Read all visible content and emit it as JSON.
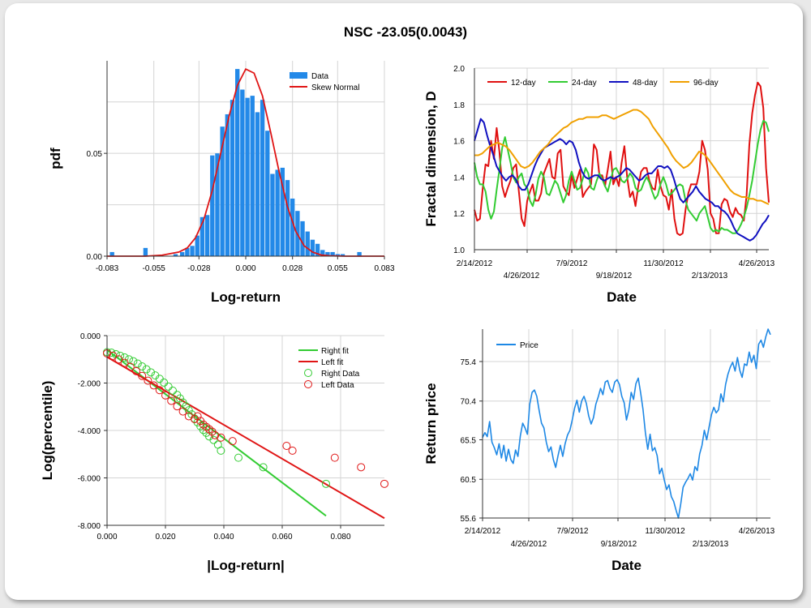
{
  "title": "NSC -23.05(0.0043)",
  "chart_data": [
    {
      "type": "bar",
      "id": "histogram",
      "xlabel": "Log-return",
      "ylabel": "pdf",
      "xlim": [
        -0.083,
        0.083
      ],
      "ylim": [
        0,
        0.095
      ],
      "x_ticks": [
        "-0.083",
        "-0.055",
        "-0.028",
        "0.000",
        "0.028",
        "0.055",
        "0.083"
      ],
      "y_ticks": [
        "0.00",
        "0.05"
      ],
      "legend": [
        "Data",
        "Skew Normal"
      ],
      "bar_width": 0.0026,
      "bars": {
        "x": [
          -0.08,
          -0.06,
          -0.042,
          -0.038,
          -0.035,
          -0.032,
          -0.029,
          -0.026,
          -0.023,
          -0.02,
          -0.017,
          -0.014,
          -0.011,
          -0.008,
          -0.005,
          -0.002,
          0.001,
          0.004,
          0.007,
          0.01,
          0.013,
          0.016,
          0.019,
          0.022,
          0.025,
          0.028,
          0.031,
          0.034,
          0.037,
          0.04,
          0.043,
          0.046,
          0.049,
          0.052,
          0.055,
          0.058,
          0.068
        ],
        "values": [
          0.002,
          0.004,
          0.001,
          0.002,
          0.004,
          0.005,
          0.01,
          0.019,
          0.02,
          0.049,
          0.05,
          0.063,
          0.069,
          0.076,
          0.091,
          0.081,
          0.077,
          0.078,
          0.07,
          0.076,
          0.061,
          0.04,
          0.042,
          0.043,
          0.037,
          0.028,
          0.022,
          0.017,
          0.012,
          0.008,
          0.006,
          0.003,
          0.002,
          0.002,
          0.001,
          0.001,
          0.002
        ]
      },
      "fit": {
        "x": [
          -0.083,
          -0.06,
          -0.05,
          -0.04,
          -0.035,
          -0.03,
          -0.025,
          -0.02,
          -0.015,
          -0.01,
          -0.005,
          0.0,
          0.005,
          0.01,
          0.015,
          0.02,
          0.025,
          0.03,
          0.035,
          0.04,
          0.045,
          0.05,
          0.06,
          0.083
        ],
        "y": [
          0.0,
          0.0,
          0.0005,
          0.002,
          0.004,
          0.009,
          0.018,
          0.032,
          0.05,
          0.068,
          0.083,
          0.091,
          0.089,
          0.078,
          0.06,
          0.041,
          0.024,
          0.012,
          0.005,
          0.002,
          0.0006,
          0.0002,
          0.0,
          0.0
        ]
      }
    },
    {
      "type": "line",
      "id": "fractal",
      "xlabel": "Date",
      "ylabel": "Fractal dimension, D",
      "xlim": [
        0,
        1
      ],
      "ylim": [
        1.0,
        2.0
      ],
      "y_ticks": [
        "1.0",
        "1.2",
        "1.4",
        "1.6",
        "1.8",
        "2.0"
      ],
      "x_ticks_top": [
        "2/14/2012",
        "7/9/2012",
        "11/30/2012",
        "4/26/2013"
      ],
      "x_ticks_bottom": [
        "4/26/2012",
        "9/18/2012",
        "2/13/2013"
      ],
      "series": [
        {
          "name": "12-day",
          "color": "#e01010",
          "values": [
            1.22,
            1.16,
            1.17,
            1.34,
            1.47,
            1.46,
            1.6,
            1.5,
            1.67,
            1.54,
            1.35,
            1.29,
            1.34,
            1.38,
            1.45,
            1.47,
            1.32,
            1.17,
            1.13,
            1.27,
            1.32,
            1.36,
            1.27,
            1.27,
            1.31,
            1.42,
            1.46,
            1.5,
            1.4,
            1.39,
            1.53,
            1.55,
            1.35,
            1.32,
            1.3,
            1.41,
            1.34,
            1.39,
            1.44,
            1.29,
            1.32,
            1.34,
            1.36,
            1.58,
            1.55,
            1.41,
            1.41,
            1.35,
            1.44,
            1.54,
            1.36,
            1.4,
            1.35,
            1.48,
            1.57,
            1.4,
            1.29,
            1.32,
            1.24,
            1.35,
            1.43,
            1.45,
            1.45,
            1.38,
            1.34,
            1.33,
            1.44,
            1.35,
            1.3,
            1.29,
            1.22,
            1.33,
            1.17,
            1.09,
            1.08,
            1.09,
            1.22,
            1.31,
            1.36,
            1.36,
            1.36,
            1.43,
            1.6,
            1.55,
            1.44,
            1.2,
            1.17,
            1.09,
            1.09,
            1.25,
            1.28,
            1.27,
            1.21,
            1.18,
            1.23,
            1.2,
            1.19,
            1.16,
            1.3,
            1.58,
            1.75,
            1.85,
            1.92,
            1.9,
            1.78,
            1.45,
            1.26
          ]
        },
        {
          "name": "24-day",
          "color": "#33cc33",
          "values": [
            1.48,
            1.4,
            1.36,
            1.36,
            1.32,
            1.22,
            1.17,
            1.21,
            1.33,
            1.44,
            1.56,
            1.62,
            1.55,
            1.48,
            1.4,
            1.37,
            1.4,
            1.42,
            1.36,
            1.34,
            1.27,
            1.24,
            1.3,
            1.39,
            1.43,
            1.4,
            1.31,
            1.3,
            1.34,
            1.38,
            1.36,
            1.31,
            1.26,
            1.3,
            1.38,
            1.43,
            1.38,
            1.33,
            1.34,
            1.39,
            1.45,
            1.42,
            1.34,
            1.33,
            1.38,
            1.42,
            1.39,
            1.35,
            1.32,
            1.38,
            1.44,
            1.45,
            1.42,
            1.38,
            1.37,
            1.39,
            1.42,
            1.4,
            1.34,
            1.32,
            1.33,
            1.37,
            1.4,
            1.37,
            1.32,
            1.28,
            1.3,
            1.36,
            1.4,
            1.36,
            1.3,
            1.31,
            1.33,
            1.35,
            1.36,
            1.35,
            1.27,
            1.22,
            1.2,
            1.18,
            1.16,
            1.2,
            1.22,
            1.24,
            1.18,
            1.12,
            1.1,
            1.11,
            1.1,
            1.12,
            1.11,
            1.11,
            1.1,
            1.09,
            1.09,
            1.11,
            1.14,
            1.18,
            1.23,
            1.3,
            1.38,
            1.48,
            1.58,
            1.66,
            1.71,
            1.7,
            1.65
          ]
        },
        {
          "name": "48-day",
          "color": "#1010c0",
          "values": [
            1.6,
            1.66,
            1.72,
            1.7,
            1.63,
            1.57,
            1.52,
            1.46,
            1.43,
            1.4,
            1.38,
            1.4,
            1.41,
            1.39,
            1.35,
            1.33,
            1.33,
            1.36,
            1.41,
            1.46,
            1.5,
            1.53,
            1.56,
            1.57,
            1.58,
            1.59,
            1.6,
            1.61,
            1.6,
            1.58,
            1.6,
            1.59,
            1.55,
            1.48,
            1.43,
            1.4,
            1.39,
            1.4,
            1.41,
            1.41,
            1.39,
            1.38,
            1.39,
            1.4,
            1.39,
            1.4,
            1.41,
            1.43,
            1.45,
            1.44,
            1.42,
            1.4,
            1.38,
            1.39,
            1.41,
            1.42,
            1.42,
            1.44,
            1.46,
            1.46,
            1.45,
            1.46,
            1.44,
            1.39,
            1.33,
            1.28,
            1.26,
            1.28,
            1.3,
            1.32,
            1.35,
            1.32,
            1.3,
            1.28,
            1.27,
            1.26,
            1.24,
            1.24,
            1.22,
            1.21,
            1.19,
            1.16,
            1.12,
            1.09,
            1.08,
            1.07,
            1.06,
            1.05,
            1.06,
            1.08,
            1.11,
            1.14,
            1.16,
            1.19
          ]
        },
        {
          "name": "96-day",
          "color": "#f0a000",
          "values": [
            1.52,
            1.52,
            1.53,
            1.55,
            1.57,
            1.58,
            1.59,
            1.58,
            1.57,
            1.55,
            1.52,
            1.49,
            1.46,
            1.45,
            1.46,
            1.48,
            1.51,
            1.54,
            1.56,
            1.58,
            1.61,
            1.63,
            1.65,
            1.67,
            1.68,
            1.7,
            1.71,
            1.72,
            1.72,
            1.73,
            1.73,
            1.73,
            1.73,
            1.74,
            1.74,
            1.73,
            1.72,
            1.73,
            1.74,
            1.75,
            1.76,
            1.77,
            1.77,
            1.76,
            1.74,
            1.72,
            1.68,
            1.65,
            1.62,
            1.59,
            1.56,
            1.52,
            1.49,
            1.47,
            1.45,
            1.46,
            1.48,
            1.51,
            1.54,
            1.53,
            1.51,
            1.48,
            1.45,
            1.42,
            1.39,
            1.36,
            1.33,
            1.31,
            1.3,
            1.29,
            1.29,
            1.28,
            1.28,
            1.27,
            1.27,
            1.26,
            1.25
          ]
        }
      ]
    },
    {
      "type": "scatter",
      "id": "tail",
      "xlabel": "|Log-return|",
      "ylabel": "Log(percentile)",
      "xlim": [
        0.0,
        0.095
      ],
      "ylim": [
        -8.0,
        0.0
      ],
      "x_ticks": [
        "0.000",
        "0.020",
        "0.040",
        "0.060",
        "0.080"
      ],
      "y_ticks": [
        "0.000",
        "-2.000",
        "-4.000",
        "-6.000",
        "-8.000"
      ],
      "legend": [
        "Right fit",
        "Left fit",
        "Right Data",
        "Left Data"
      ],
      "right_fit": {
        "x": [
          0.0,
          0.075
        ],
        "y": [
          -0.6,
          -7.6
        ]
      },
      "left_fit": {
        "x": [
          0.0,
          0.095
        ],
        "y": [
          -0.9,
          -7.7
        ]
      },
      "right_data": {
        "x": [
          0.0,
          0.0015,
          0.003,
          0.0045,
          0.006,
          0.0075,
          0.009,
          0.0105,
          0.012,
          0.0135,
          0.015,
          0.0165,
          0.018,
          0.0195,
          0.021,
          0.0225,
          0.024,
          0.025,
          0.026,
          0.027,
          0.028,
          0.029,
          0.03,
          0.031,
          0.032,
          0.033,
          0.034,
          0.035,
          0.0365,
          0.038,
          0.039,
          0.045,
          0.0535,
          0.075
        ],
        "y": [
          -0.7,
          -0.72,
          -0.78,
          -0.85,
          -0.92,
          -1.0,
          -1.08,
          -1.18,
          -1.3,
          -1.42,
          -1.55,
          -1.68,
          -1.82,
          -1.98,
          -2.15,
          -2.32,
          -2.5,
          -2.65,
          -2.82,
          -2.98,
          -3.15,
          -3.32,
          -3.5,
          -3.66,
          -3.82,
          -3.98,
          -4.1,
          -4.25,
          -4.4,
          -4.6,
          -4.85,
          -5.15,
          -5.55,
          -6.25
        ]
      },
      "left_data": {
        "x": [
          0.0,
          0.002,
          0.004,
          0.006,
          0.008,
          0.01,
          0.012,
          0.014,
          0.016,
          0.018,
          0.02,
          0.022,
          0.024,
          0.026,
          0.028,
          0.03,
          0.031,
          0.032,
          0.033,
          0.034,
          0.035,
          0.036,
          0.037,
          0.039,
          0.043,
          0.0615,
          0.0635,
          0.078,
          0.087,
          0.095
        ],
        "y": [
          -0.75,
          -0.85,
          -1.0,
          -1.15,
          -1.32,
          -1.5,
          -1.7,
          -1.9,
          -2.1,
          -2.3,
          -2.52,
          -2.75,
          -2.98,
          -3.2,
          -3.4,
          -3.52,
          -3.4,
          -3.6,
          -3.75,
          -3.85,
          -3.95,
          -4.05,
          -4.2,
          -4.3,
          -4.45,
          -4.65,
          -4.85,
          -5.15,
          -5.55,
          -6.25
        ]
      }
    },
    {
      "type": "line",
      "id": "price",
      "xlabel": "Date",
      "ylabel": "Return price",
      "xlim": [
        0,
        1
      ],
      "ylim": [
        55.6,
        79.5
      ],
      "y_ticks": [
        "55.6",
        "60.5",
        "65.5",
        "70.4",
        "75.4"
      ],
      "x_ticks_top": [
        "2/14/2012",
        "7/9/2012",
        "11/30/2012",
        "4/26/2013"
      ],
      "x_ticks_bottom": [
        "4/26/2012",
        "9/18/2012",
        "2/13/2013"
      ],
      "legend": [
        "Price"
      ],
      "series": [
        {
          "name": "Price",
          "color": "#1e88e5",
          "values": [
            65.8,
            66.4,
            65.9,
            67.8,
            65.2,
            64.5,
            63.6,
            65.0,
            63.2,
            64.8,
            62.8,
            64.3,
            63.0,
            62.5,
            64.2,
            63.4,
            66.0,
            67.6,
            67.0,
            66.2,
            70.0,
            71.5,
            71.8,
            71.0,
            69.2,
            67.6,
            67.0,
            65.2,
            64.0,
            64.6,
            63.0,
            62.0,
            63.5,
            64.8,
            63.4,
            65.0,
            66.1,
            66.7,
            68.0,
            69.5,
            70.5,
            69.0,
            70.4,
            71.0,
            70.1,
            68.5,
            67.5,
            68.3,
            70.0,
            70.9,
            72.0,
            71.2,
            72.8,
            73.0,
            72.0,
            71.5,
            72.8,
            73.1,
            72.5,
            71.0,
            70.2,
            68.0,
            69.3,
            71.5,
            70.6,
            72.6,
            73.3,
            71.4,
            69.3,
            66.4,
            64.3,
            66.2,
            64.1,
            64.5,
            63.5,
            61.2,
            61.9,
            60.4,
            59.2,
            59.8,
            58.3,
            57.7,
            56.6,
            55.6,
            57.4,
            59.5,
            60.1,
            60.6,
            61.2,
            60.4,
            62.1,
            61.6,
            63.7,
            64.8,
            66.7,
            65.5,
            67.1,
            68.7,
            69.6,
            68.9,
            69.3,
            71.3,
            70.3,
            72.5,
            73.8,
            74.7,
            75.3,
            74.2,
            75.9,
            74.3,
            73.4,
            75.1,
            74.9,
            76.6,
            75.3,
            76.2,
            74.5,
            77.6,
            78.1,
            77.2,
            78.5,
            79.5,
            78.8
          ]
        }
      ]
    }
  ]
}
